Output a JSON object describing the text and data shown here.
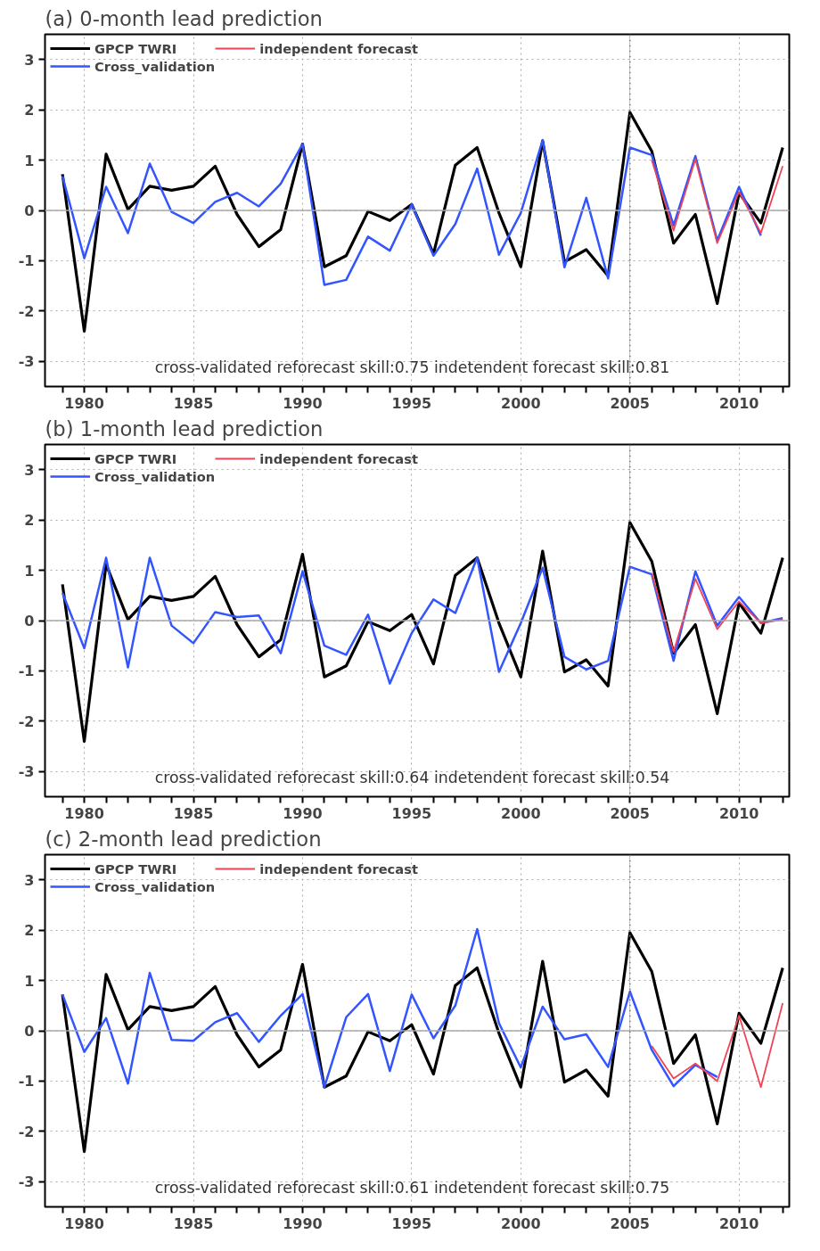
{
  "chart_data": [
    {
      "type": "line",
      "title": "(a)  0-month lead prediction",
      "x": [
        1979,
        1980,
        1981,
        1982,
        1983,
        1984,
        1985,
        1986,
        1987,
        1988,
        1989,
        1990,
        1991,
        1992,
        1993,
        1994,
        1995,
        1996,
        1997,
        1998,
        1999,
        2000,
        2001,
        2002,
        2003,
        2004,
        2005,
        2006,
        2007,
        2008,
        2009,
        2010,
        2011,
        2012
      ],
      "series": [
        {
          "name": "GPCP TWRI",
          "color": "#000000",
          "values": [
            0.72,
            -2.4,
            1.12,
            0.02,
            0.48,
            0.4,
            0.48,
            0.88,
            -0.08,
            -0.72,
            -0.38,
            1.32,
            -1.12,
            -0.9,
            -0.02,
            -0.2,
            0.12,
            -0.86,
            0.9,
            1.25,
            -0.05,
            -1.12,
            1.38,
            -1.02,
            -0.78,
            -1.3,
            1.95,
            1.18,
            -0.65,
            -0.08,
            -1.85,
            0.35,
            -0.25,
            1.25
          ]
        },
        {
          "name": "Cross_validation",
          "color": "#3355ff",
          "values": [
            0.68,
            -0.95,
            0.47,
            -0.45,
            0.93,
            -0.03,
            -0.25,
            0.17,
            0.35,
            0.08,
            0.53,
            1.32,
            -1.48,
            -1.38,
            -0.52,
            -0.8,
            0.12,
            -0.9,
            -0.27,
            0.83,
            -0.88,
            -0.05,
            1.4,
            -1.13,
            0.25,
            -1.35,
            1.25,
            1.1,
            -0.3,
            1.08,
            -0.6,
            0.47,
            -0.5,
            null
          ]
        },
        {
          "name": "independent forecast",
          "color": "#ee4455",
          "x": [
            2006,
            2007,
            2008,
            2009,
            2010,
            2011,
            2012
          ],
          "values": [
            1.0,
            -0.4,
            1.02,
            -0.65,
            0.37,
            -0.45,
            0.88
          ]
        }
      ],
      "xlim": [
        1978.2,
        2012.3
      ],
      "xticks": [
        {
          "value": 1979,
          "label": null
        },
        1980,
        {
          "value": 1981,
          "label": null
        },
        {
          "value": 1982,
          "label": null
        },
        {
          "value": 1983,
          "label": null
        },
        {
          "value": 1984,
          "label": null
        },
        1985,
        {
          "value": 1986,
          "label": null
        },
        {
          "value": 1987,
          "label": null
        },
        {
          "value": 1988,
          "label": null
        },
        {
          "value": 1989,
          "label": null
        },
        1990,
        {
          "value": 1991,
          "label": null
        },
        {
          "value": 1992,
          "label": null
        },
        {
          "value": 1993,
          "label": null
        },
        {
          "value": 1994,
          "label": null
        },
        1995,
        {
          "value": 1996,
          "label": null
        },
        {
          "value": 1997,
          "label": null
        },
        {
          "value": 1998,
          "label": null
        },
        {
          "value": 1999,
          "label": null
        },
        2000,
        {
          "value": 2001,
          "label": null
        },
        {
          "value": 2002,
          "label": null
        },
        {
          "value": 2003,
          "label": null
        },
        {
          "value": 2004,
          "label": null
        },
        2005,
        {
          "value": 2006,
          "label": null
        },
        {
          "value": 2007,
          "label": null
        },
        {
          "value": 2008,
          "label": null
        },
        {
          "value": 2009,
          "label": null
        },
        2010,
        {
          "value": 2011,
          "label": null
        },
        {
          "value": 2012,
          "label": null
        }
      ],
      "ylim": [
        -3.5,
        3.5
      ],
      "yticks": [
        -3,
        -2,
        -1,
        0,
        1,
        2,
        3
      ],
      "grid": true,
      "legend": "top left",
      "line_style": "solid",
      "ref_lines": [
        {
          "axis": "y",
          "value": 0,
          "color": "#aaaaaa",
          "line_style": "solid"
        },
        {
          "axis": "x",
          "value": 2005,
          "color": "#777777",
          "line_style": "dotted"
        }
      ],
      "annotations": [
        "cross-validated reforecast skill:0.75   indetendent forecast skill:0.81"
      ]
    },
    {
      "type": "line",
      "title": "(b)  1-month lead prediction",
      "x": [
        1979,
        1980,
        1981,
        1982,
        1983,
        1984,
        1985,
        1986,
        1987,
        1988,
        1989,
        1990,
        1991,
        1992,
        1993,
        1994,
        1995,
        1996,
        1997,
        1998,
        1999,
        2000,
        2001,
        2002,
        2003,
        2004,
        2005,
        2006,
        2007,
        2008,
        2009,
        2010,
        2011,
        2012
      ],
      "series": [
        {
          "name": "GPCP TWRI",
          "color": "#000000",
          "values": [
            0.72,
            -2.4,
            1.12,
            0.02,
            0.48,
            0.4,
            0.48,
            0.88,
            -0.08,
            -0.72,
            -0.38,
            1.32,
            -1.12,
            -0.9,
            -0.02,
            -0.2,
            0.12,
            -0.86,
            0.9,
            1.25,
            -0.05,
            -1.12,
            1.38,
            -1.02,
            -0.78,
            -1.3,
            1.95,
            1.18,
            -0.65,
            -0.08,
            -1.85,
            0.35,
            -0.25,
            1.25
          ]
        },
        {
          "name": "Cross_validation",
          "color": "#3355ff",
          "values": [
            0.55,
            -0.55,
            1.25,
            -0.93,
            1.25,
            -0.1,
            -0.45,
            0.17,
            0.07,
            0.1,
            -0.65,
            0.98,
            -0.5,
            -0.68,
            0.12,
            -1.25,
            -0.25,
            0.42,
            0.15,
            1.25,
            -1.02,
            -0.05,
            1.05,
            -0.72,
            -0.97,
            -0.8,
            1.07,
            0.92,
            -0.8,
            0.98,
            -0.1,
            0.47,
            -0.05,
            0.05
          ]
        },
        {
          "name": "independent forecast",
          "color": "#ee4455",
          "x": [
            2006,
            2007,
            2008,
            2009,
            2010,
            2011,
            2012
          ],
          "values": [
            0.95,
            -0.62,
            0.83,
            -0.17,
            0.38,
            -0.05,
            0.02
          ]
        }
      ],
      "xlim": [
        1978.2,
        2012.3
      ],
      "xticks": [
        {
          "value": 1979,
          "label": null
        },
        1980,
        {
          "value": 1981,
          "label": null
        },
        {
          "value": 1982,
          "label": null
        },
        {
          "value": 1983,
          "label": null
        },
        {
          "value": 1984,
          "label": null
        },
        1985,
        {
          "value": 1986,
          "label": null
        },
        {
          "value": 1987,
          "label": null
        },
        {
          "value": 1988,
          "label": null
        },
        {
          "value": 1989,
          "label": null
        },
        1990,
        {
          "value": 1991,
          "label": null
        },
        {
          "value": 1992,
          "label": null
        },
        {
          "value": 1993,
          "label": null
        },
        {
          "value": 1994,
          "label": null
        },
        1995,
        {
          "value": 1996,
          "label": null
        },
        {
          "value": 1997,
          "label": null
        },
        {
          "value": 1998,
          "label": null
        },
        {
          "value": 1999,
          "label": null
        },
        2000,
        {
          "value": 2001,
          "label": null
        },
        {
          "value": 2002,
          "label": null
        },
        {
          "value": 2003,
          "label": null
        },
        {
          "value": 2004,
          "label": null
        },
        2005,
        {
          "value": 2006,
          "label": null
        },
        {
          "value": 2007,
          "label": null
        },
        {
          "value": 2008,
          "label": null
        },
        {
          "value": 2009,
          "label": null
        },
        2010,
        {
          "value": 2011,
          "label": null
        },
        {
          "value": 2012,
          "label": null
        }
      ],
      "ylim": [
        -3.5,
        3.5
      ],
      "yticks": [
        -3,
        -2,
        -1,
        0,
        1,
        2,
        3
      ],
      "grid": true,
      "legend": "top left",
      "line_style": "solid",
      "ref_lines": [
        {
          "axis": "y",
          "value": 0,
          "color": "#aaaaaa",
          "line_style": "solid"
        },
        {
          "axis": "x",
          "value": 2005,
          "color": "#777777",
          "line_style": "dotted"
        }
      ],
      "annotations": [
        "cross-validated reforecast skill:0.64   indetendent forecast skill:0.54"
      ]
    },
    {
      "type": "line",
      "title": "(c)  2-month lead prediction",
      "x": [
        1979,
        1980,
        1981,
        1982,
        1983,
        1984,
        1985,
        1986,
        1987,
        1988,
        1989,
        1990,
        1991,
        1992,
        1993,
        1994,
        1995,
        1996,
        1997,
        1998,
        1999,
        2000,
        2001,
        2002,
        2003,
        2004,
        2005,
        2006,
        2007,
        2008,
        2009,
        2010,
        2011,
        2012
      ],
      "series": [
        {
          "name": "GPCP TWRI",
          "color": "#000000",
          "values": [
            0.72,
            -2.4,
            1.12,
            0.02,
            0.48,
            0.4,
            0.48,
            0.88,
            -0.08,
            -0.72,
            -0.38,
            1.32,
            -1.12,
            -0.9,
            -0.02,
            -0.2,
            0.12,
            -0.86,
            0.9,
            1.25,
            -0.05,
            -1.12,
            1.38,
            -1.02,
            -0.78,
            -1.3,
            1.95,
            1.18,
            -0.65,
            -0.08,
            -1.85,
            0.35,
            -0.25,
            1.25
          ]
        },
        {
          "name": "Cross_validation",
          "color": "#3355ff",
          "values": [
            0.72,
            -0.42,
            0.25,
            -1.05,
            1.15,
            -0.18,
            -0.2,
            0.17,
            0.35,
            -0.22,
            0.3,
            0.73,
            -1.12,
            0.27,
            0.73,
            -0.8,
            0.72,
            -0.15,
            0.5,
            2.02,
            0.15,
            -0.73,
            0.48,
            -0.17,
            -0.07,
            -0.72,
            0.78,
            -0.38,
            -1.1,
            -0.68,
            -0.92,
            null,
            null,
            null
          ]
        },
        {
          "name": "independent forecast",
          "color": "#ee4455",
          "x": [
            2006,
            2007,
            2008,
            2009,
            2010,
            2011,
            2012
          ],
          "values": [
            -0.3,
            -0.95,
            -0.65,
            -1.0,
            0.3,
            -1.12,
            0.55
          ]
        }
      ],
      "xlim": [
        1978.2,
        2012.3
      ],
      "xticks": [
        {
          "value": 1979,
          "label": null
        },
        1980,
        {
          "value": 1981,
          "label": null
        },
        {
          "value": 1982,
          "label": null
        },
        {
          "value": 1983,
          "label": null
        },
        {
          "value": 1984,
          "label": null
        },
        1985,
        {
          "value": 1986,
          "label": null
        },
        {
          "value": 1987,
          "label": null
        },
        {
          "value": 1988,
          "label": null
        },
        {
          "value": 1989,
          "label": null
        },
        1990,
        {
          "value": 1991,
          "label": null
        },
        {
          "value": 1992,
          "label": null
        },
        {
          "value": 1993,
          "label": null
        },
        {
          "value": 1994,
          "label": null
        },
        1995,
        {
          "value": 1996,
          "label": null
        },
        {
          "value": 1997,
          "label": null
        },
        {
          "value": 1998,
          "label": null
        },
        {
          "value": 1999,
          "label": null
        },
        2000,
        {
          "value": 2001,
          "label": null
        },
        {
          "value": 2002,
          "label": null
        },
        {
          "value": 2003,
          "label": null
        },
        {
          "value": 2004,
          "label": null
        },
        2005,
        {
          "value": 2006,
          "label": null
        },
        {
          "value": 2007,
          "label": null
        },
        {
          "value": 2008,
          "label": null
        },
        {
          "value": 2009,
          "label": null
        },
        2010,
        {
          "value": 2011,
          "label": null
        },
        {
          "value": 2012,
          "label": null
        }
      ],
      "ylim": [
        -3.5,
        3.5
      ],
      "yticks": [
        -3,
        -2,
        -1,
        0,
        1,
        2,
        3
      ],
      "grid": true,
      "legend": "top left",
      "line_style": "solid",
      "ref_lines": [
        {
          "axis": "y",
          "value": 0,
          "color": "#aaaaaa",
          "line_style": "solid"
        },
        {
          "axis": "x",
          "value": 2005,
          "color": "#777777",
          "line_style": "dotted"
        }
      ],
      "annotations": [
        "cross-validated reforecast skill:0.61   indetendent forecast skill:0.75"
      ]
    }
  ]
}
